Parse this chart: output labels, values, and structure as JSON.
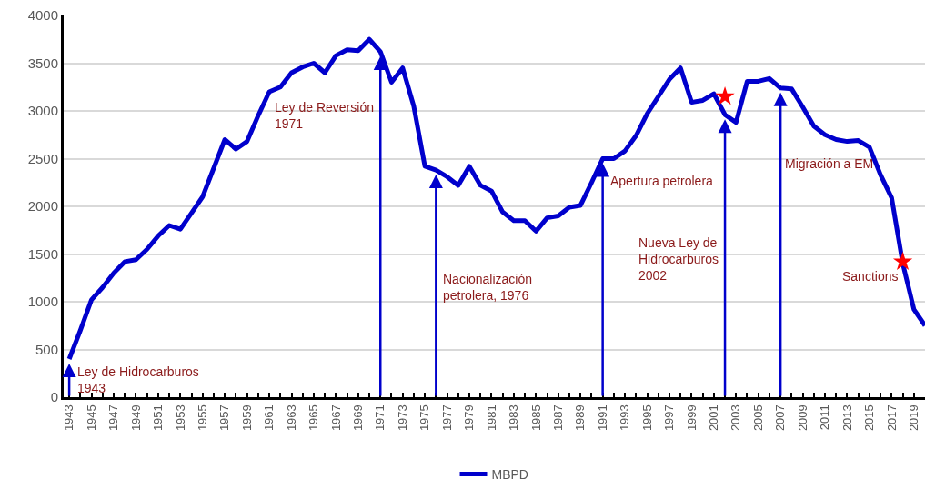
{
  "chart_data": {
    "type": "line",
    "x": [
      1943,
      1944,
      1945,
      1946,
      1947,
      1948,
      1949,
      1950,
      1951,
      1952,
      1953,
      1954,
      1955,
      1956,
      1957,
      1958,
      1959,
      1960,
      1961,
      1962,
      1963,
      1964,
      1965,
      1966,
      1967,
      1968,
      1969,
      1970,
      1971,
      1972,
      1973,
      1974,
      1975,
      1976,
      1977,
      1978,
      1979,
      1980,
      1981,
      1982,
      1983,
      1984,
      1985,
      1986,
      1987,
      1988,
      1989,
      1990,
      1991,
      1992,
      1993,
      1994,
      1995,
      1996,
      1997,
      1998,
      1999,
      2000,
      2001,
      2002,
      2003,
      2004,
      2005,
      2006,
      2007,
      2008,
      2009,
      2010,
      2011,
      2012,
      2013,
      2014,
      2015,
      2016,
      2017,
      2018,
      2019,
      2020
    ],
    "series": [
      {
        "name": "MBPD",
        "color": "#0000cc",
        "values": [
          400,
          700,
          1020,
          1150,
          1300,
          1420,
          1440,
          1550,
          1690,
          1800,
          1760,
          1930,
          2100,
          2400,
          2700,
          2600,
          2680,
          2950,
          3200,
          3250,
          3400,
          3460,
          3500,
          3400,
          3580,
          3640,
          3630,
          3750,
          3620,
          3300,
          3450,
          3050,
          2420,
          2380,
          2310,
          2220,
          2420,
          2220,
          2160,
          1940,
          1850,
          1850,
          1740,
          1880,
          1900,
          1990,
          2010,
          2250,
          2500,
          2500,
          2580,
          2740,
          2970,
          3150,
          3330,
          3450,
          3090,
          3110,
          3180,
          2960,
          2880,
          3310,
          3310,
          3340,
          3240,
          3230,
          3040,
          2840,
          2750,
          2700,
          2680,
          2690,
          2620,
          2330,
          2090,
          1400,
          920,
          750
        ]
      },
      {
        "type": "scatter",
        "marker": "star",
        "color": "#ff0000",
        "x": [
          2002,
          2018
        ],
        "values": [
          3150,
          1420
        ]
      }
    ],
    "xlim": [
      1942.5,
      2020
    ],
    "xticks": [
      1943,
      {
        "value": 1944,
        "label": null
      },
      1945,
      {
        "value": 1946,
        "label": null
      },
      1947,
      {
        "value": 1948,
        "label": null
      },
      1949,
      {
        "value": 1950,
        "label": null
      },
      1951,
      {
        "value": 1952,
        "label": null
      },
      1953,
      {
        "value": 1954,
        "label": null
      },
      1955,
      {
        "value": 1956,
        "label": null
      },
      1957,
      {
        "value": 1958,
        "label": null
      },
      1959,
      {
        "value": 1960,
        "label": null
      },
      1961,
      {
        "value": 1962,
        "label": null
      },
      1963,
      {
        "value": 1964,
        "label": null
      },
      1965,
      {
        "value": 1966,
        "label": null
      },
      1967,
      {
        "value": 1968,
        "label": null
      },
      1969,
      {
        "value": 1970,
        "label": null
      },
      1971,
      {
        "value": 1972,
        "label": null
      },
      1973,
      {
        "value": 1974,
        "label": null
      },
      1975,
      {
        "value": 1976,
        "label": null
      },
      1977,
      {
        "value": 1978,
        "label": null
      },
      1979,
      {
        "value": 1980,
        "label": null
      },
      1981,
      {
        "value": 1982,
        "label": null
      },
      1983,
      {
        "value": 1984,
        "label": null
      },
      1985,
      {
        "value": 1986,
        "label": null
      },
      1987,
      {
        "value": 1988,
        "label": null
      },
      1989,
      {
        "value": 1990,
        "label": null
      },
      1991,
      {
        "value": 1992,
        "label": null
      },
      1993,
      {
        "value": 1994,
        "label": null
      },
      1995,
      {
        "value": 1996,
        "label": null
      },
      1997,
      {
        "value": 1998,
        "label": null
      },
      1999,
      {
        "value": 2000,
        "label": null
      },
      2001,
      {
        "value": 2002,
        "label": null
      },
      2003,
      {
        "value": 2004,
        "label": null
      },
      2005,
      {
        "value": 2006,
        "label": null
      },
      2007,
      {
        "value": 2008,
        "label": null
      },
      2009,
      {
        "value": 2010,
        "label": null
      },
      2011,
      {
        "value": 2012,
        "label": null
      },
      2013,
      {
        "value": 2014,
        "label": null
      },
      2015,
      {
        "value": 2016,
        "label": null
      },
      2017,
      {
        "value": 2018,
        "label": null
      },
      2019
    ],
    "ylim": [
      0,
      4000
    ],
    "yticks": [
      0,
      500,
      1000,
      1500,
      2000,
      2500,
      3000,
      3500,
      4000
    ],
    "grid": "y",
    "legend": "bottom",
    "marker": "none",
    "line_style": "solid",
    "ref_lines": [
      {
        "axis": "x",
        "value": 1943,
        "label": "Ley de Hidrocarburos\n1943",
        "color": "#0000cc"
      },
      {
        "axis": "x",
        "value": 1971,
        "label": "Ley de Reversión\n1971",
        "color": "#0000cc"
      },
      {
        "axis": "x",
        "value": 1976,
        "label": "Nacionalización\npetrolera, 1976",
        "color": "#0000cc"
      },
      {
        "axis": "x",
        "value": 1991,
        "label": "Apertura petrolera",
        "color": "#0000cc"
      },
      {
        "axis": "x",
        "value": 2002,
        "label": "Nueva Ley de\nHidrocarburos\n2002",
        "color": "#0000cc"
      },
      {
        "axis": "x",
        "value": 2007,
        "label": "Migración a EM",
        "color": "#0000cc"
      }
    ],
    "annotations": [
      "Sanctions"
    ]
  }
}
